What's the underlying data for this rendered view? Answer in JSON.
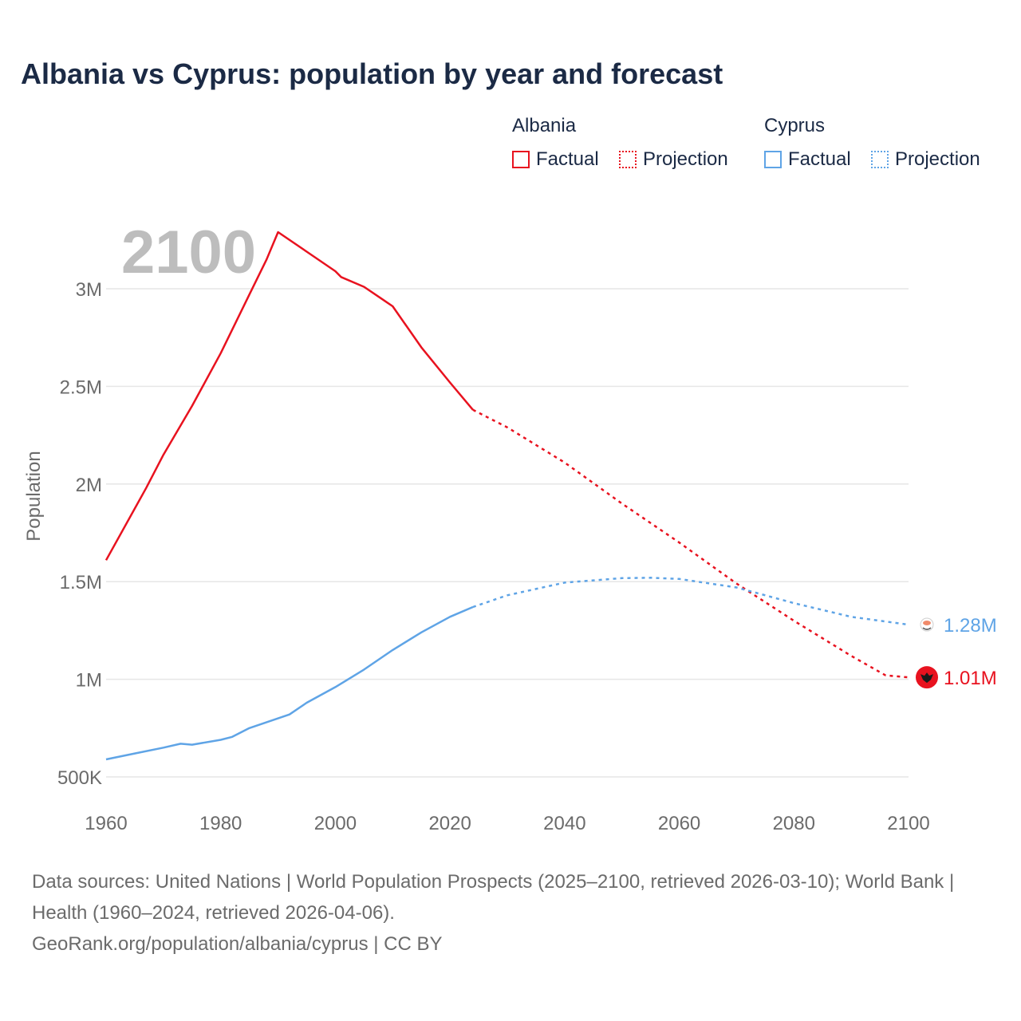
{
  "title": "Albania vs Cyprus: population by year and forecast",
  "legend": {
    "groups": [
      {
        "name": "Albania",
        "color": "#e8121f",
        "factual_label": "Factual",
        "projection_label": "Projection"
      },
      {
        "name": "Cyprus",
        "color": "#5fa4e6",
        "factual_label": "Factual",
        "projection_label": "Projection"
      }
    ]
  },
  "year_watermark": "2100",
  "footer": {
    "sources": "Data sources: United Nations | World Population Prospects (2025–2100, retrieved 2026-03-10); World Bank | Health (1960–2024, retrieved 2026-04-06).",
    "site": "GeoRank.org/population/albania/cyprus | CC BY"
  },
  "chart_data": {
    "type": "line",
    "ylabel": "Population",
    "xlabel": "",
    "xlim": [
      1960,
      2100
    ],
    "ylim": [
      500000,
      3300000
    ],
    "x_ticks": [
      1960,
      1980,
      2000,
      2020,
      2040,
      2060,
      2080,
      2100
    ],
    "x_tick_labels": [
      "1960",
      "1980",
      "2000",
      "2020",
      "2040",
      "2060",
      "2080",
      "2100"
    ],
    "y_ticks": [
      500000,
      1000000,
      1500000,
      2000000,
      2500000,
      3000000
    ],
    "y_tick_labels": [
      "500K",
      "1M",
      "1.5M",
      "2M",
      "2.5M",
      "3M"
    ],
    "grid": true,
    "series": [
      {
        "name": "Albania",
        "color": "#e8121f",
        "factual": [
          [
            1960,
            1610000
          ],
          [
            1967,
            1980000
          ],
          [
            1970,
            2150000
          ],
          [
            1975,
            2400000
          ],
          [
            1980,
            2670000
          ],
          [
            1985,
            2970000
          ],
          [
            1988,
            3150000
          ],
          [
            1990,
            3290000
          ],
          [
            1995,
            3190000
          ],
          [
            2000,
            3090000
          ],
          [
            2001,
            3060000
          ],
          [
            2005,
            3010000
          ],
          [
            2008,
            2950000
          ],
          [
            2010,
            2910000
          ],
          [
            2015,
            2700000
          ],
          [
            2020,
            2520000
          ],
          [
            2024,
            2380000
          ]
        ],
        "projection": [
          [
            2024,
            2380000
          ],
          [
            2030,
            2290000
          ],
          [
            2040,
            2110000
          ],
          [
            2050,
            1900000
          ],
          [
            2060,
            1700000
          ],
          [
            2070,
            1490000
          ],
          [
            2080,
            1300000
          ],
          [
            2090,
            1120000
          ],
          [
            2096,
            1020000
          ],
          [
            2100,
            1010000
          ]
        ],
        "end_label": "1.01M"
      },
      {
        "name": "Cyprus",
        "color": "#5fa4e6",
        "factual": [
          [
            1960,
            590000
          ],
          [
            1965,
            620000
          ],
          [
            1970,
            650000
          ],
          [
            1973,
            670000
          ],
          [
            1975,
            665000
          ],
          [
            1980,
            690000
          ],
          [
            1982,
            705000
          ],
          [
            1985,
            750000
          ],
          [
            1990,
            800000
          ],
          [
            1992,
            820000
          ],
          [
            1995,
            880000
          ],
          [
            2000,
            960000
          ],
          [
            2005,
            1050000
          ],
          [
            2010,
            1150000
          ],
          [
            2015,
            1240000
          ],
          [
            2020,
            1320000
          ],
          [
            2024,
            1370000
          ]
        ],
        "projection": [
          [
            2024,
            1370000
          ],
          [
            2030,
            1430000
          ],
          [
            2040,
            1495000
          ],
          [
            2050,
            1518000
          ],
          [
            2055,
            1520000
          ],
          [
            2060,
            1514000
          ],
          [
            2070,
            1470000
          ],
          [
            2080,
            1390000
          ],
          [
            2090,
            1320000
          ],
          [
            2100,
            1280000
          ]
        ],
        "end_label": "1.28M"
      }
    ]
  }
}
